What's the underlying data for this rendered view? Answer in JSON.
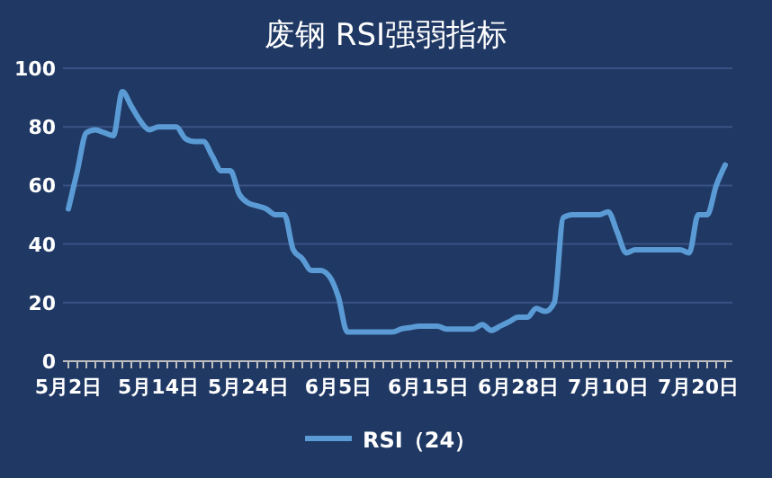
{
  "chart_data": {
    "type": "line",
    "title": "废钢 RSI强弱指标",
    "categories": [
      "5月2日",
      null,
      null,
      null,
      null,
      null,
      null,
      null,
      null,
      null,
      "5月14日",
      null,
      null,
      null,
      null,
      null,
      null,
      null,
      null,
      null,
      "5月24日",
      null,
      null,
      null,
      null,
      null,
      null,
      null,
      null,
      null,
      "6月5日",
      null,
      null,
      null,
      null,
      null,
      null,
      null,
      null,
      null,
      "6月15日",
      null,
      null,
      null,
      null,
      null,
      null,
      null,
      null,
      null,
      "6月28日",
      null,
      null,
      null,
      null,
      null,
      null,
      null,
      null,
      null,
      "7月10日",
      null,
      null,
      null,
      null,
      null,
      null,
      null,
      null,
      null,
      "7月20日",
      null,
      null,
      null
    ],
    "series": [
      {
        "name": "RSI（24）",
        "color": "#5b9bd5",
        "values": [
          52,
          65,
          78,
          79,
          78,
          77,
          92,
          87,
          82,
          79,
          80,
          80,
          80,
          76,
          75,
          75,
          70,
          65,
          65,
          57,
          54,
          53,
          52,
          50,
          50,
          38,
          35,
          31,
          31,
          29,
          22,
          10,
          10,
          10,
          10,
          10,
          10,
          11,
          11.5,
          12,
          12,
          12,
          11,
          11,
          11,
          11,
          12.5,
          10.5,
          12,
          13.5,
          15,
          15,
          18,
          17,
          20,
          49,
          50,
          50,
          50,
          50,
          51,
          44,
          37,
          38,
          38,
          38,
          38,
          38,
          38,
          37,
          50,
          50,
          60,
          67
        ]
      }
    ],
    "ylim": [
      0,
      100
    ],
    "yticks": [
      0,
      20,
      40,
      60,
      80,
      100
    ],
    "grid": "y",
    "legend": "bottom",
    "marker": "none",
    "line_style": "solid"
  }
}
